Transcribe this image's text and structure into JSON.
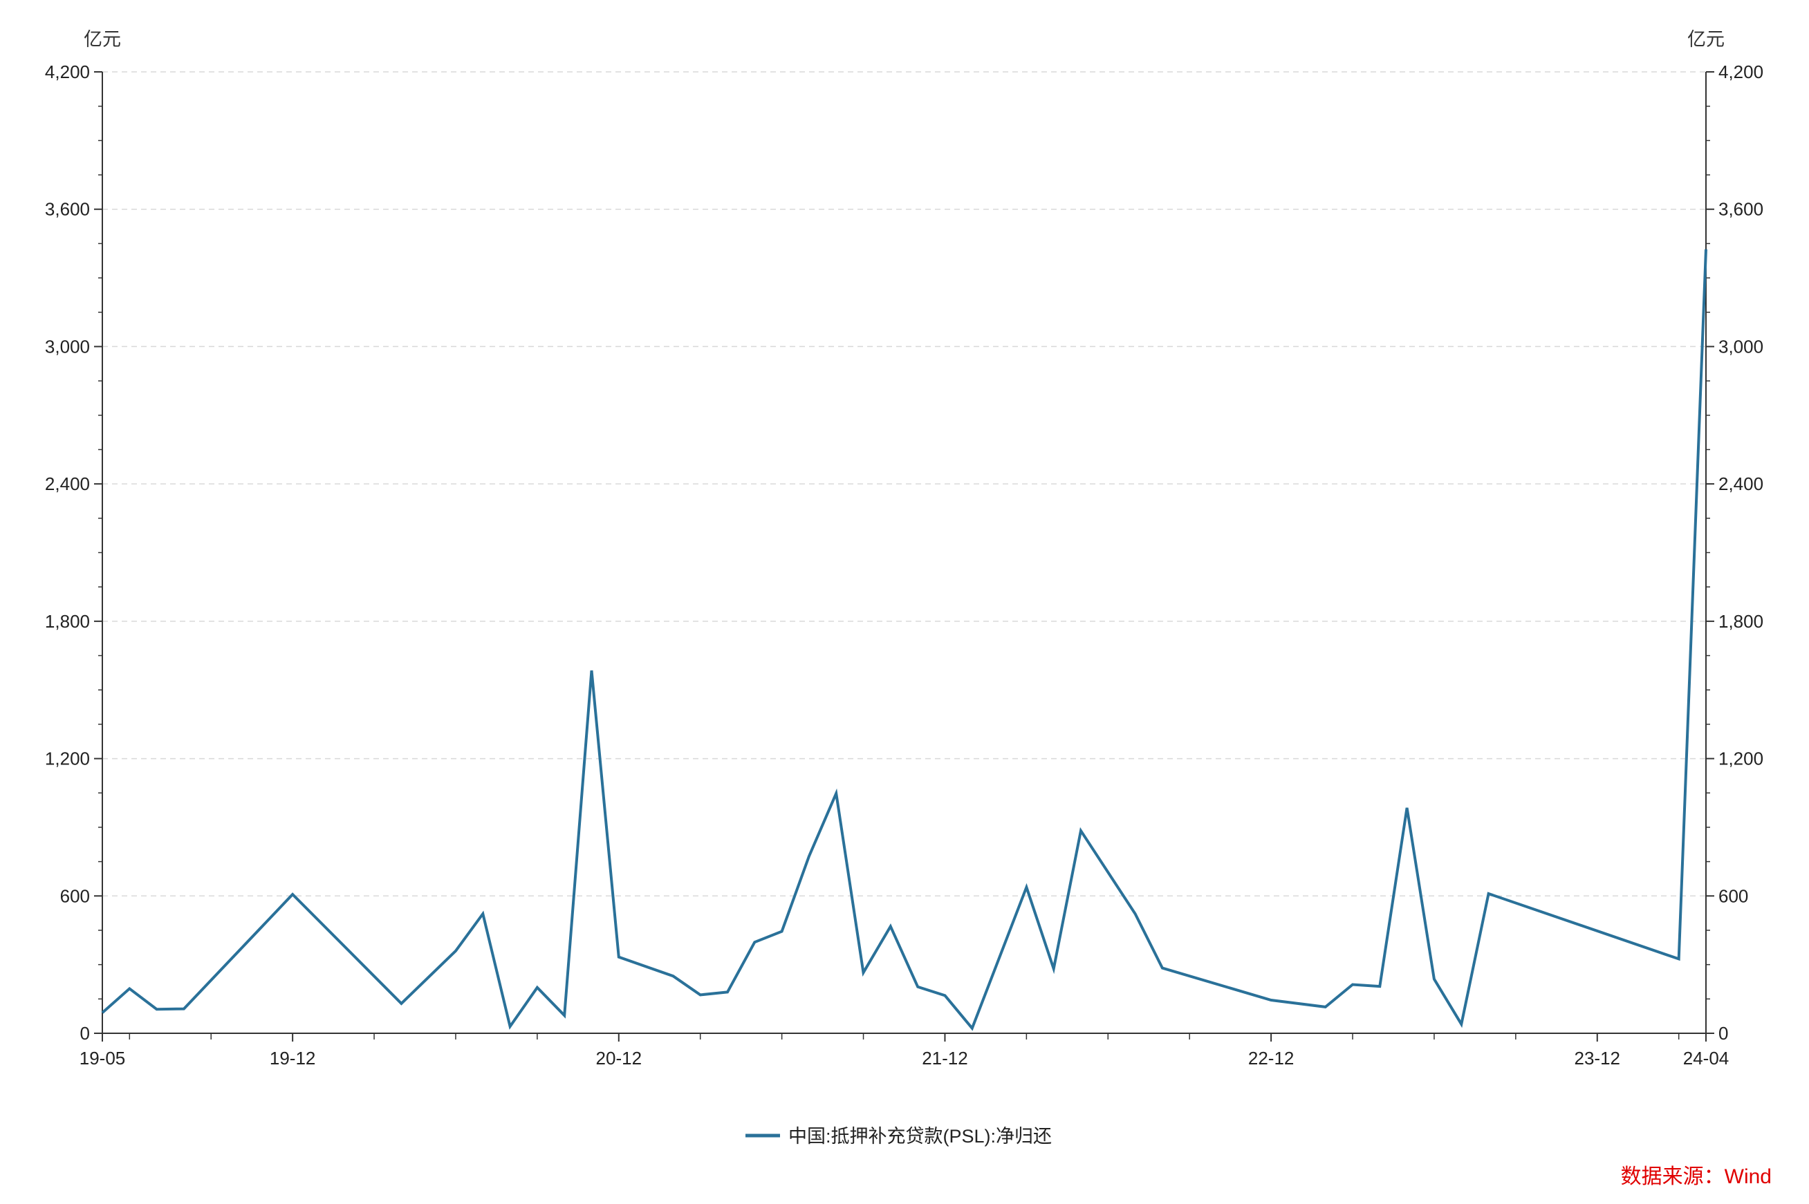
{
  "chart_data": {
    "type": "line",
    "y_unit_left": "亿元",
    "y_unit_right": "亿元",
    "ylim": [
      0,
      4200
    ],
    "y_ticks": [
      0,
      600,
      1200,
      1800,
      2400,
      3000,
      3600,
      4200
    ],
    "y_tick_labels": [
      "0",
      "600",
      "1,200",
      "1,800",
      "2,400",
      "3,000",
      "3,600",
      "4,200"
    ],
    "x_range": [
      "2019-05",
      "2024-04"
    ],
    "x_tick_labels": [
      {
        "date": "2019-05",
        "label": "19-05"
      },
      {
        "date": "2019-12",
        "label": "19-12"
      },
      {
        "date": "2020-12",
        "label": "20-12"
      },
      {
        "date": "2021-12",
        "label": "21-12"
      },
      {
        "date": "2022-12",
        "label": "22-12"
      },
      {
        "date": "2023-12",
        "label": "23-12"
      },
      {
        "date": "2024-04",
        "label": "24-04"
      }
    ],
    "grid": "horizontal dashed",
    "legend_position": "bottom-center",
    "series": [
      {
        "name": "中国:抵押补充贷款(PSL):净归还",
        "color": "#2a7199",
        "points": [
          {
            "x": "2019-05",
            "y": 90
          },
          {
            "x": "2019-06",
            "y": 195
          },
          {
            "x": "2019-07",
            "y": 105
          },
          {
            "x": "2019-08",
            "y": 107
          },
          {
            "x": "2019-12",
            "y": 607
          },
          {
            "x": "2020-04",
            "y": 130
          },
          {
            "x": "2020-06",
            "y": 360
          },
          {
            "x": "2020-07",
            "y": 522
          },
          {
            "x": "2020-08",
            "y": 30
          },
          {
            "x": "2020-09",
            "y": 200
          },
          {
            "x": "2020-10",
            "y": 78
          },
          {
            "x": "2020-11",
            "y": 1585
          },
          {
            "x": "2020-12",
            "y": 333
          },
          {
            "x": "2021-02",
            "y": 250
          },
          {
            "x": "2021-03",
            "y": 168
          },
          {
            "x": "2021-04",
            "y": 180
          },
          {
            "x": "2021-05",
            "y": 398
          },
          {
            "x": "2021-06",
            "y": 445
          },
          {
            "x": "2021-07",
            "y": 773
          },
          {
            "x": "2021-08",
            "y": 1048
          },
          {
            "x": "2021-09",
            "y": 265
          },
          {
            "x": "2021-10",
            "y": 467
          },
          {
            "x": "2021-11",
            "y": 203
          },
          {
            "x": "2021-12",
            "y": 165
          },
          {
            "x": "2022-01",
            "y": 22
          },
          {
            "x": "2022-03",
            "y": 638
          },
          {
            "x": "2022-04",
            "y": 282
          },
          {
            "x": "2022-05",
            "y": 885
          },
          {
            "x": "2022-07",
            "y": 522
          },
          {
            "x": "2022-08",
            "y": 285
          },
          {
            "x": "2022-12",
            "y": 145
          },
          {
            "x": "2023-02",
            "y": 115
          },
          {
            "x": "2023-03",
            "y": 213
          },
          {
            "x": "2023-04",
            "y": 205
          },
          {
            "x": "2023-05",
            "y": 985
          },
          {
            "x": "2023-06",
            "y": 237
          },
          {
            "x": "2023-07",
            "y": 40
          },
          {
            "x": "2023-08",
            "y": 610
          },
          {
            "x": "2024-03",
            "y": 325
          },
          {
            "x": "2024-04",
            "y": 3425
          }
        ]
      }
    ]
  },
  "source": "数据来源：Wind"
}
